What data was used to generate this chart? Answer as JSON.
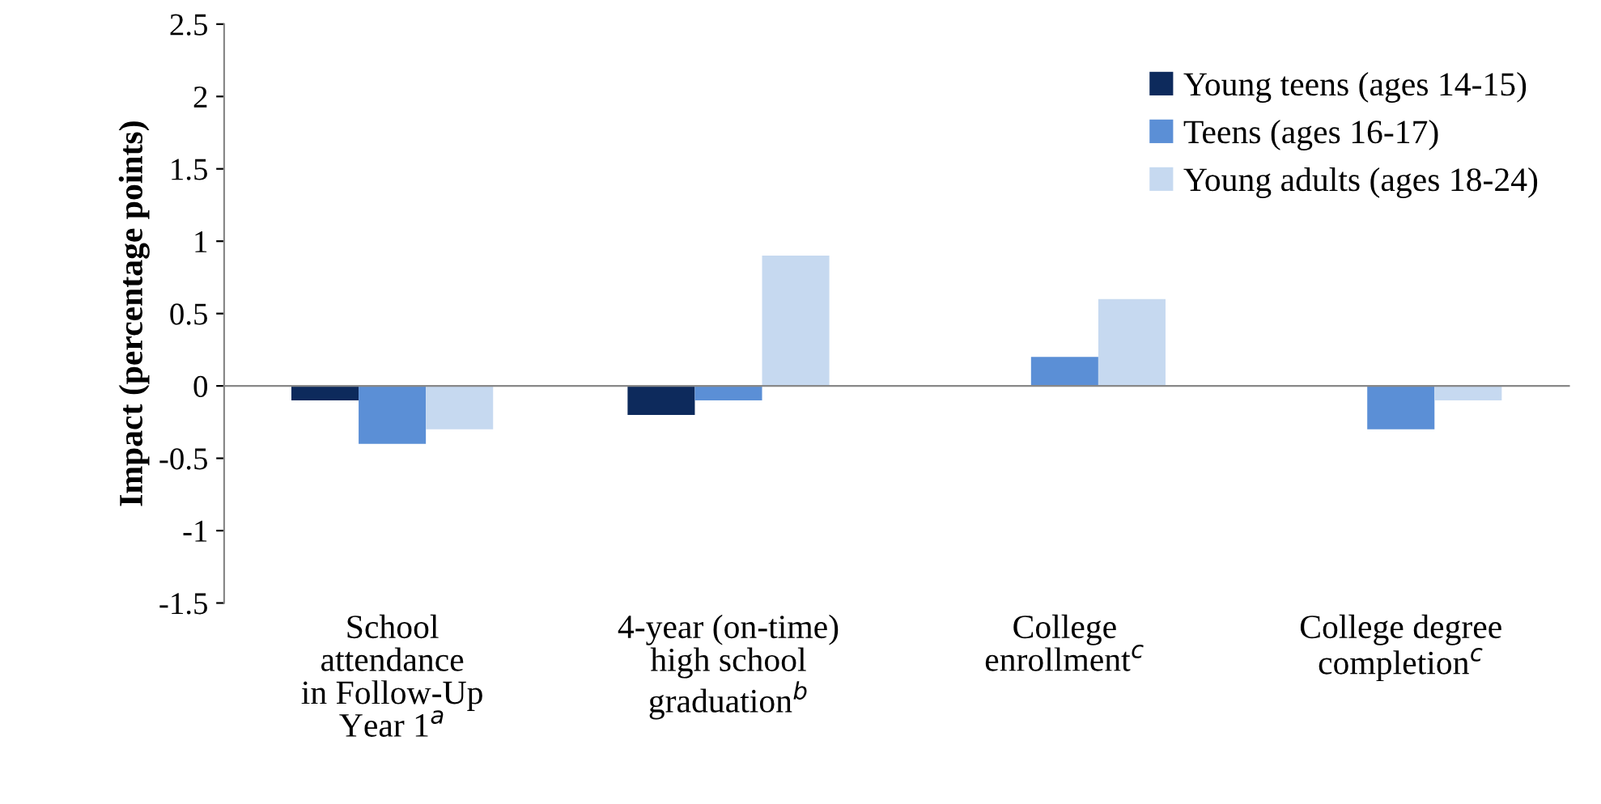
{
  "chart_data": {
    "type": "bar",
    "ylabel": "Impact (percentage points)",
    "categories": [
      "School\nattendance\nin Follow-Up\nYear 1$^{a}$",
      "4-year (on-time)\nhigh school\ngraduation$^{b}$",
      "College\nenrollment$^{c}$",
      "College degree\ncompletion$^{c}$"
    ],
    "series": [
      {
        "name": "Young teens (ages 14-15)",
        "color": "#0d2a5c",
        "values": [
          -0.1,
          -0.2,
          null,
          null
        ]
      },
      {
        "name": "Teens (ages 16-17)",
        "color": "#5b8fd6",
        "values": [
          -0.4,
          -0.1,
          0.2,
          -0.3
        ]
      },
      {
        "name": "Young adults (ages 18-24)",
        "color": "#c6d9f0",
        "values": [
          -0.3,
          0.9,
          0.6,
          -0.1
        ]
      }
    ],
    "ylim": [
      -1.5,
      2.5
    ],
    "yticks": [
      -1.5,
      -1,
      -0.5,
      0,
      0.5,
      1,
      1.5,
      2,
      2.5
    ],
    "legend": "top right"
  }
}
